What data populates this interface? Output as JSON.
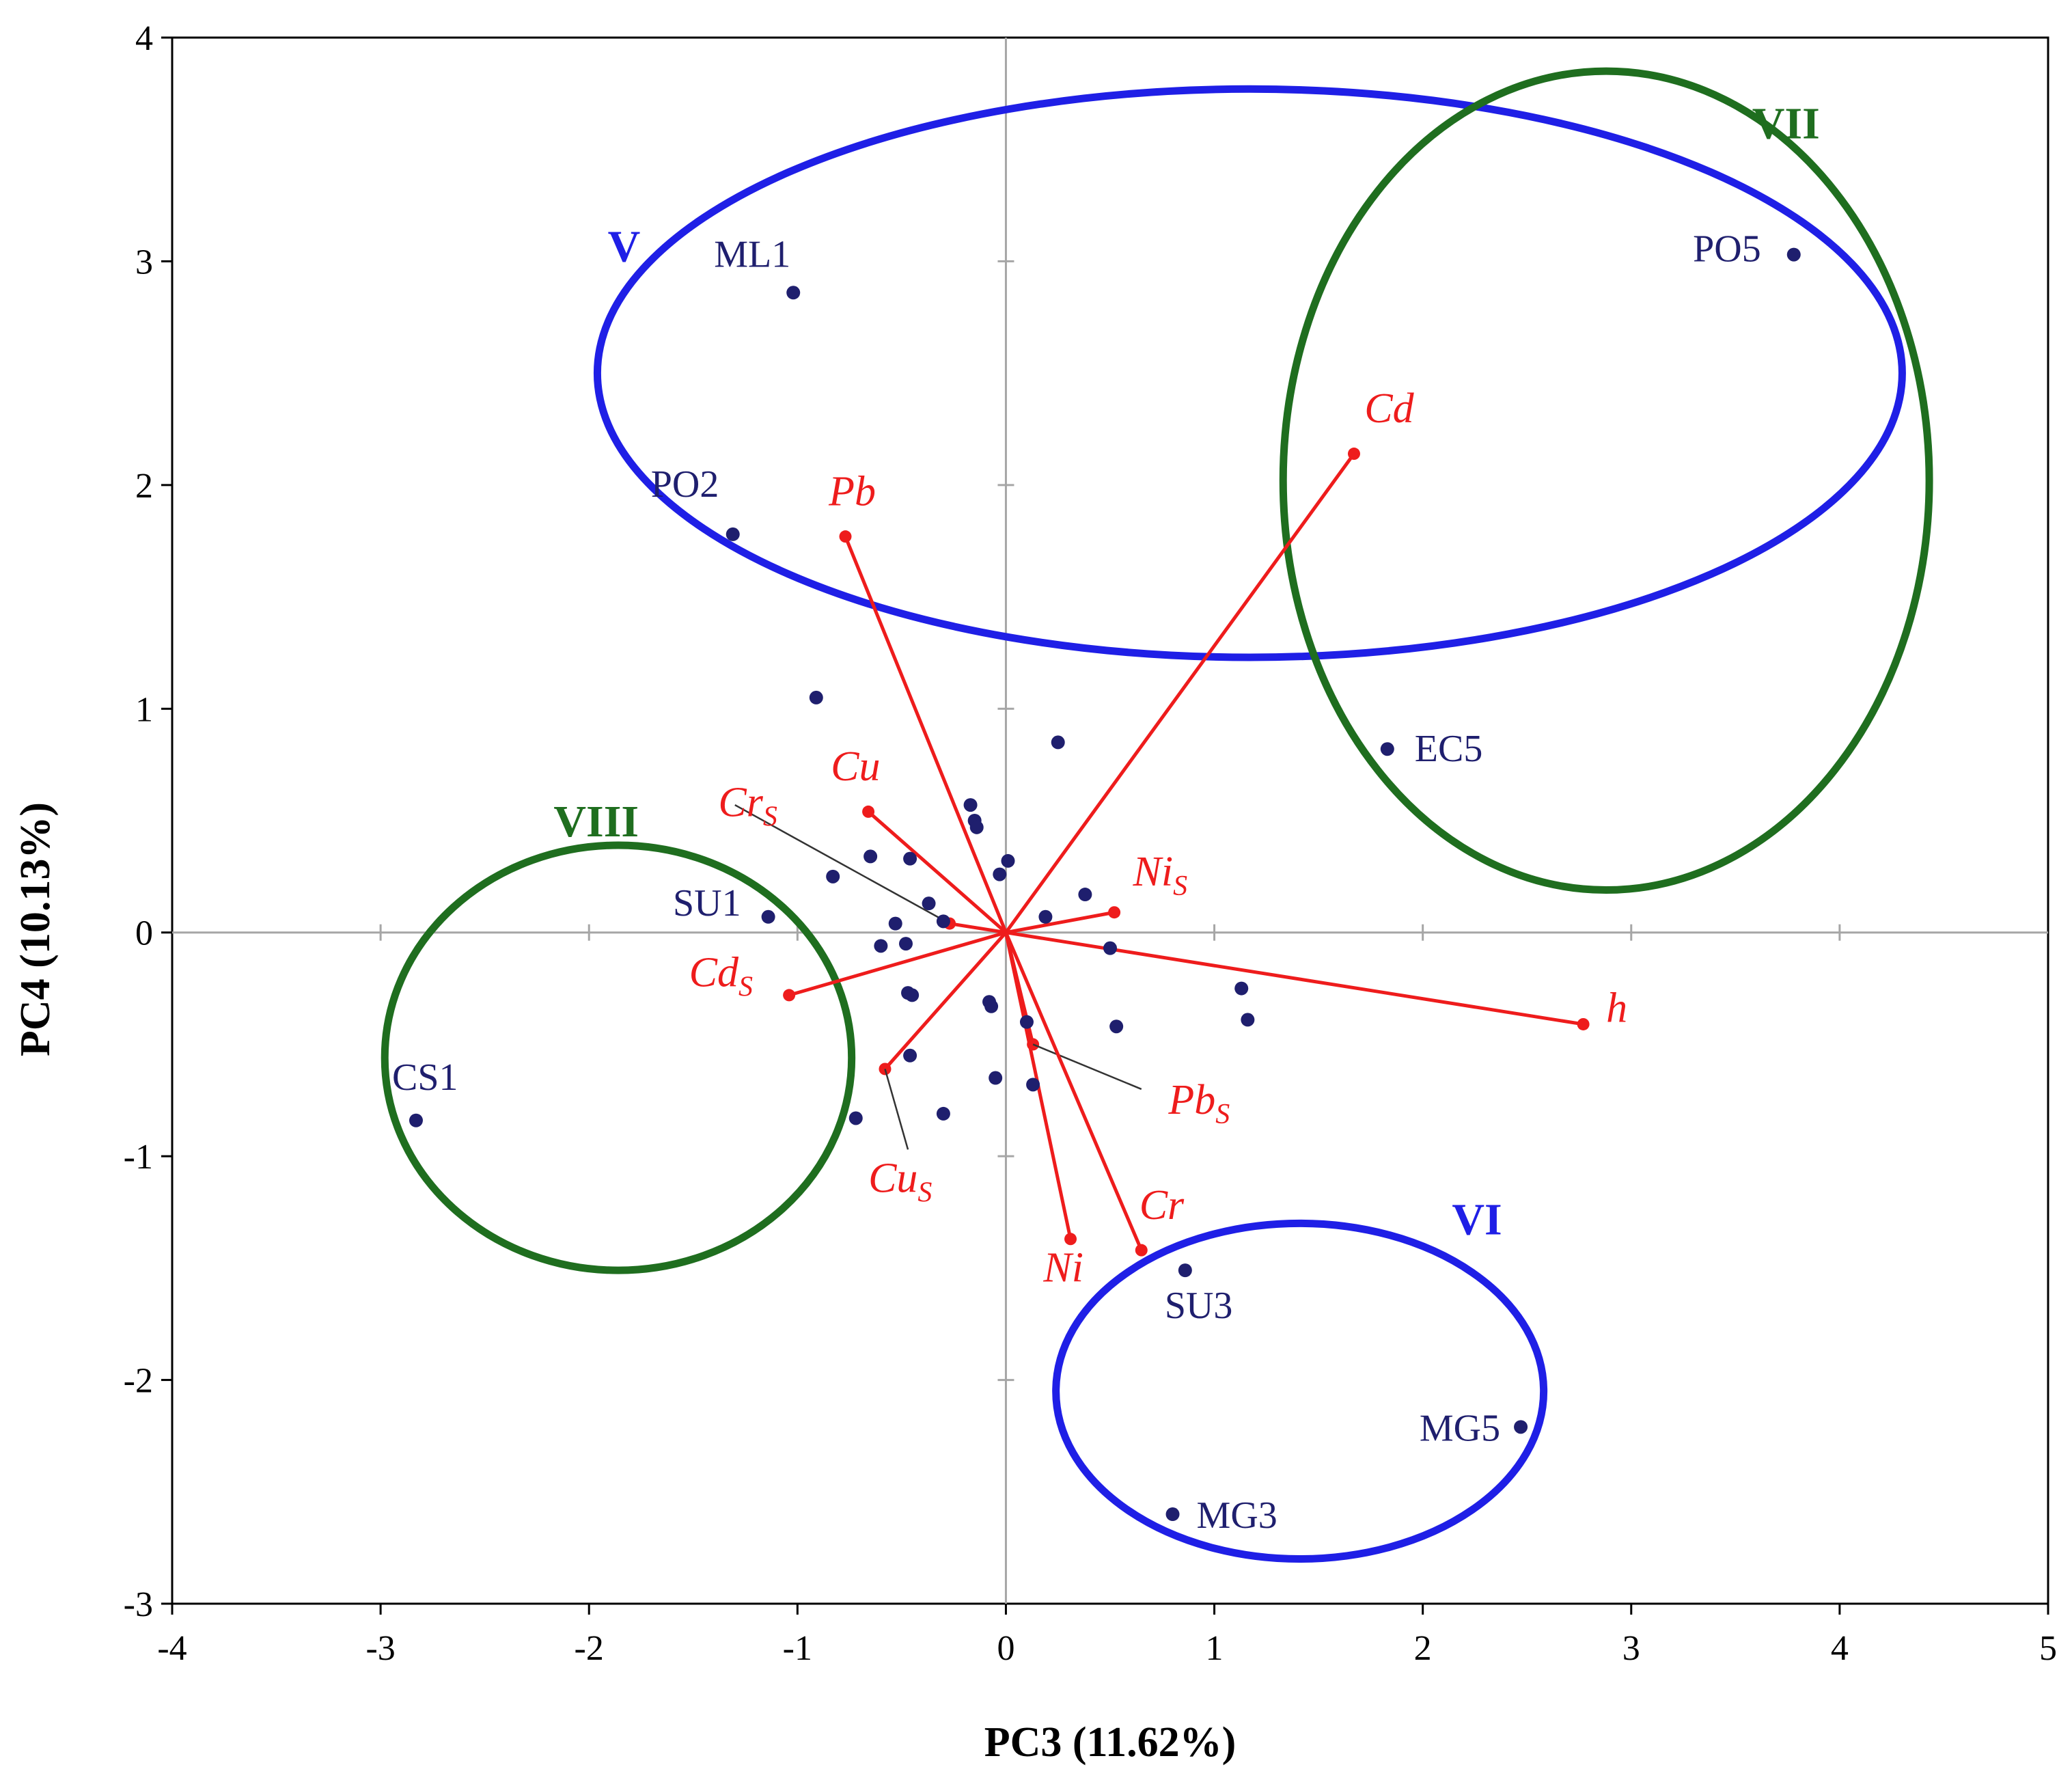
{
  "chart_data": {
    "type": "scatter",
    "subtype": "pca-biplot",
    "xlabel": "PC3 (11.62%)",
    "ylabel": "PC4 (10.13%)",
    "xlim": [
      -4,
      5
    ],
    "ylim": [
      -3,
      4
    ],
    "xticks": [
      -4,
      -3,
      -2,
      -1,
      0,
      1,
      2,
      3,
      4,
      5
    ],
    "yticks": [
      -3,
      -2,
      -1,
      0,
      1,
      2,
      3,
      4
    ],
    "grid": false,
    "colors": {
      "points": "#1f1f6e",
      "vectors": "#ee1c1c",
      "leader": "#333333",
      "group_blue": "#1f1fe6",
      "group_green": "#1f6e1f"
    },
    "labeled_points": [
      {
        "label": "ML1",
        "x": -1.02,
        "y": 2.86
      },
      {
        "label": "PO2",
        "x": -1.31,
        "y": 1.78
      },
      {
        "label": "PO5",
        "x": 3.78,
        "y": 3.03
      },
      {
        "label": "EC5",
        "x": 1.83,
        "y": 0.82
      },
      {
        "label": "SU1",
        "x": -1.14,
        "y": 0.07
      },
      {
        "label": "CS1",
        "x": -2.83,
        "y": -0.84
      },
      {
        "label": "SU3",
        "x": 0.86,
        "y": -1.51
      },
      {
        "label": "MG5",
        "x": 2.47,
        "y": -2.21
      },
      {
        "label": "MG3",
        "x": 0.8,
        "y": -2.6
      }
    ],
    "unlabeled_points": [
      {
        "x": -0.91,
        "y": 1.05
      },
      {
        "x": 0.25,
        "y": 0.85
      },
      {
        "x": -0.17,
        "y": 0.57
      },
      {
        "x": -0.15,
        "y": 0.5
      },
      {
        "x": -0.14,
        "y": 0.47
      },
      {
        "x": -0.65,
        "y": 0.34
      },
      {
        "x": -0.46,
        "y": 0.33
      },
      {
        "x": 0.01,
        "y": 0.32
      },
      {
        "x": -0.03,
        "y": 0.26
      },
      {
        "x": -0.83,
        "y": 0.25
      },
      {
        "x": 0.38,
        "y": 0.17
      },
      {
        "x": -0.37,
        "y": 0.13
      },
      {
        "x": -0.53,
        "y": 0.04
      },
      {
        "x": -0.3,
        "y": 0.05
      },
      {
        "x": 0.19,
        "y": 0.07
      },
      {
        "x": -0.6,
        "y": -0.06
      },
      {
        "x": -0.48,
        "y": -0.05
      },
      {
        "x": 0.5,
        "y": -0.07
      },
      {
        "x": -0.47,
        "y": -0.27
      },
      {
        "x": -0.45,
        "y": -0.28
      },
      {
        "x": -0.08,
        "y": -0.31
      },
      {
        "x": -0.07,
        "y": -0.33
      },
      {
        "x": 1.13,
        "y": -0.25
      },
      {
        "x": 1.16,
        "y": -0.39
      },
      {
        "x": 0.1,
        "y": -0.4
      },
      {
        "x": 0.53,
        "y": -0.42
      },
      {
        "x": -0.46,
        "y": -0.55
      },
      {
        "x": -0.05,
        "y": -0.65
      },
      {
        "x": 0.13,
        "y": -0.68
      },
      {
        "x": -0.72,
        "y": -0.83
      },
      {
        "x": -0.3,
        "y": -0.81
      }
    ],
    "vectors": [
      {
        "name": "Pb",
        "sub": "",
        "x": -0.77,
        "y": 1.77,
        "lx": -0.85,
        "ly": 1.91
      },
      {
        "name": "Cd",
        "sub": "",
        "x": 1.67,
        "y": 2.14,
        "lx": 1.72,
        "ly": 2.28
      },
      {
        "name": "Cu",
        "sub": "",
        "x": -0.66,
        "y": 0.54,
        "lx": -0.84,
        "ly": 0.68
      },
      {
        "name": "Cr",
        "sub": "S",
        "x": -0.27,
        "y": 0.04,
        "lx": -1.38,
        "ly": 0.52,
        "leader": {
          "x": -1.3,
          "y": 0.57
        }
      },
      {
        "name": "Ni",
        "sub": "S",
        "x": 0.52,
        "y": 0.09,
        "lx": 0.61,
        "ly": 0.21
      },
      {
        "name": "h",
        "sub": "",
        "x": 2.77,
        "y": -0.41,
        "lx": 2.88,
        "ly": -0.4
      },
      {
        "name": "Cd",
        "sub": "S",
        "x": -1.04,
        "y": -0.28,
        "lx": -1.52,
        "ly": -0.24
      },
      {
        "name": "Cu",
        "sub": "S",
        "x": -0.58,
        "y": -0.61,
        "lx": -0.66,
        "ly": -1.16,
        "leader": {
          "x": -0.47,
          "y": -0.97
        }
      },
      {
        "name": "Pb",
        "sub": "S",
        "x": 0.13,
        "y": -0.5,
        "lx": 0.78,
        "ly": -0.81,
        "leader": {
          "x": 0.65,
          "y": -0.7
        }
      },
      {
        "name": "Cr",
        "sub": "",
        "x": 0.65,
        "y": -1.42,
        "lx": 0.64,
        "ly": -1.28
      },
      {
        "name": "Ni",
        "sub": "",
        "x": 0.31,
        "y": -1.37,
        "lx": 0.18,
        "ly": -1.56
      }
    ],
    "groups": [
      {
        "label": "V",
        "color": "blue",
        "cx": 1.17,
        "cy": 2.5,
        "rx": 3.13,
        "ry": 1.27,
        "lx": -1.91,
        "ly": 3.0
      },
      {
        "label": "VII",
        "color": "green",
        "cx": 2.88,
        "cy": 2.02,
        "rx": 1.55,
        "ry": 1.83,
        "lx": 3.58,
        "ly": 3.55
      },
      {
        "label": "VIII",
        "color": "green",
        "cx": -1.86,
        "cy": -0.56,
        "rx": 1.12,
        "ry": 0.95,
        "lx": -2.17,
        "ly": 0.43
      },
      {
        "label": "VI",
        "color": "blue",
        "cx": 1.41,
        "cy": -2.05,
        "rx": 1.17,
        "ry": 0.75,
        "lx": 2.14,
        "ly": -1.35
      }
    ]
  }
}
